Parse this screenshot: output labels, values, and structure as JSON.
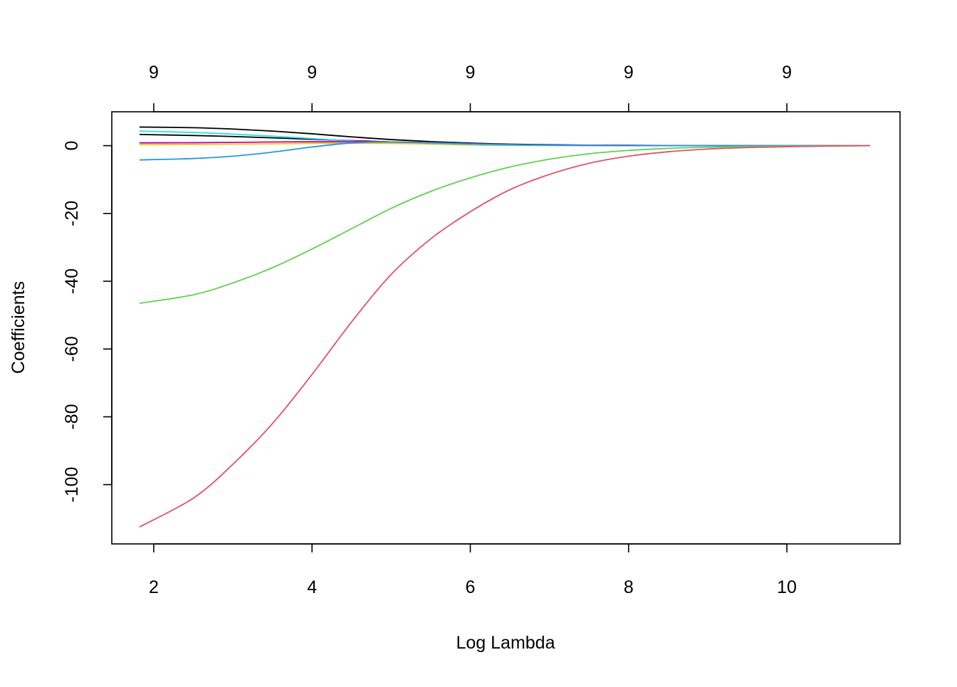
{
  "chart_data": {
    "type": "line",
    "title": "",
    "xlabel": "Log Lambda",
    "ylabel": "Coefficients",
    "xlim": [
      1.47,
      11.43
    ],
    "ylim": [
      -117.5,
      10.0
    ],
    "x_ticks": [
      2,
      4,
      6,
      8,
      10
    ],
    "y_ticks": [
      0,
      -20,
      -40,
      -60,
      -80,
      -100
    ],
    "top_axis": {
      "ticks": [
        2,
        4,
        6,
        8,
        10
      ],
      "labels": [
        "9",
        "9",
        "9",
        "9",
        "9"
      ]
    },
    "grid": false,
    "legend": "none",
    "x": [
      1.82,
      2.5,
      3.0,
      3.5,
      4.0,
      4.5,
      5.0,
      5.5,
      6.0,
      6.5,
      7.0,
      7.5,
      8.0,
      8.5,
      9.0,
      9.5,
      10.0,
      10.5,
      11.05
    ],
    "series": [
      {
        "color": "#000000",
        "values": [
          5.5,
          5.3,
          4.9,
          4.3,
          3.5,
          2.6,
          1.8,
          1.2,
          0.75,
          0.45,
          0.27,
          0.16,
          0.09,
          0.05,
          0.03,
          0.02,
          0.01,
          0.005,
          0
        ]
      },
      {
        "color": "#000000",
        "values": [
          3.3,
          3.0,
          2.7,
          2.3,
          1.9,
          1.5,
          1.1,
          0.75,
          0.5,
          0.3,
          0.18,
          0.1,
          0.06,
          0.03,
          0.02,
          0.01,
          0.005,
          0.002,
          0
        ]
      },
      {
        "color": "#28E2E5",
        "values": [
          4.3,
          3.9,
          3.4,
          2.8,
          2.1,
          1.4,
          0.85,
          0.45,
          0.22,
          0.1,
          0.05,
          0.02,
          0.01,
          0.005,
          0.002,
          0.001,
          0,
          0,
          0
        ]
      },
      {
        "color": "#9E9E9E",
        "values": [
          0.9,
          0.95,
          1.0,
          1.05,
          1.05,
          1.0,
          0.85,
          0.65,
          0.45,
          0.28,
          0.16,
          0.09,
          0.05,
          0.03,
          0.015,
          0.008,
          0.004,
          0.002,
          0
        ]
      },
      {
        "color": "#F5C710",
        "values": [
          0.3,
          0.35,
          0.45,
          0.55,
          0.65,
          0.7,
          0.65,
          0.5,
          0.35,
          0.22,
          0.13,
          0.07,
          0.04,
          0.02,
          0.01,
          0.005,
          0.002,
          0.001,
          0
        ]
      },
      {
        "color": "#CD0BBC",
        "values": [
          0.8,
          0.85,
          0.95,
          1.1,
          1.2,
          1.25,
          1.1,
          0.85,
          0.55,
          0.33,
          0.19,
          0.1,
          0.06,
          0.03,
          0.015,
          0.008,
          0.004,
          0.002,
          0
        ]
      },
      {
        "color": "#2297E6",
        "values": [
          -4.2,
          -3.8,
          -3.1,
          -1.9,
          -0.4,
          0.8,
          1.1,
          0.9,
          0.55,
          0.3,
          0.15,
          0.07,
          0.03,
          0.015,
          0.007,
          0.003,
          0.001,
          0,
          0
        ]
      },
      {
        "color": "#61D04F",
        "values": [
          -46.5,
          -44.0,
          -40.5,
          -36.0,
          -30.5,
          -24.5,
          -18.5,
          -13.5,
          -9.5,
          -6.3,
          -4.0,
          -2.4,
          -1.4,
          -0.8,
          -0.45,
          -0.25,
          -0.13,
          -0.06,
          0
        ]
      },
      {
        "color": "#DF536B",
        "values": [
          -112.5,
          -104.0,
          -94.0,
          -82.0,
          -67.5,
          -52.0,
          -38.0,
          -27.5,
          -19.5,
          -13.0,
          -8.5,
          -5.2,
          -3.1,
          -1.8,
          -1.0,
          -0.55,
          -0.3,
          -0.14,
          0
        ]
      }
    ]
  }
}
